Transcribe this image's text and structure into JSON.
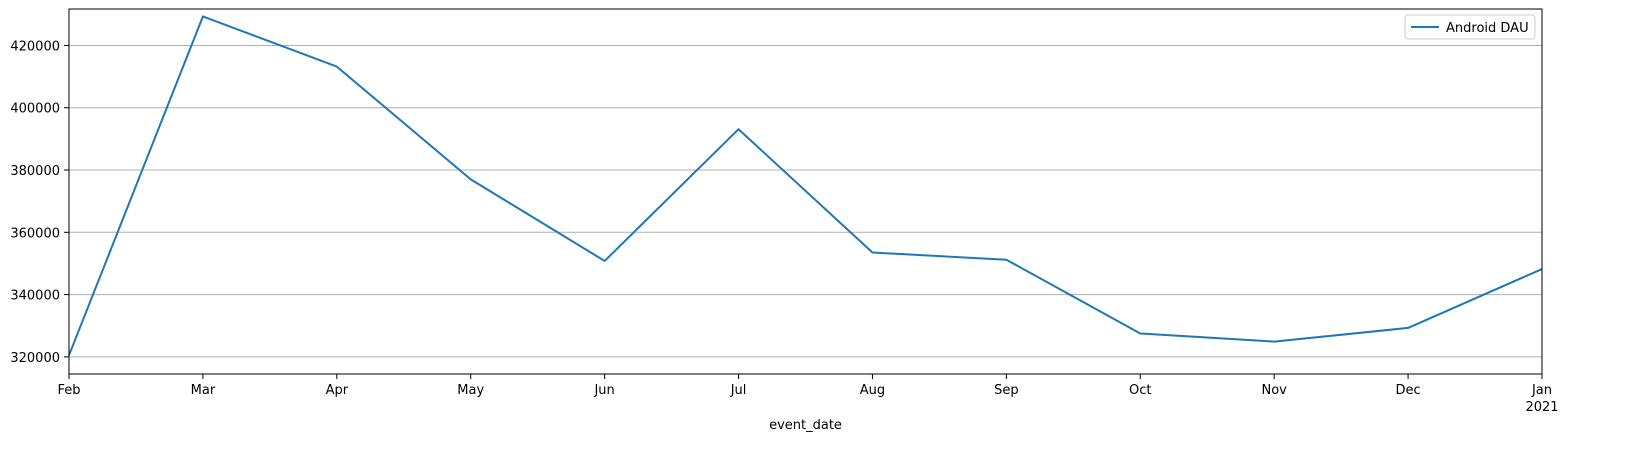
{
  "chart_data": {
    "type": "line",
    "xlabel": "event_date",
    "ylabel": "",
    "x": [
      "Feb",
      "Mar",
      "Apr",
      "May",
      "Jun",
      "Jul",
      "Aug",
      "Sep",
      "Oct",
      "Nov",
      "Dec",
      "Jan"
    ],
    "x_secondary_label": "2021",
    "series": [
      {
        "name": "Android DAU",
        "color": "#1f77b4",
        "values": [
          320500,
          429300,
          413200,
          377000,
          350800,
          393100,
          353500,
          351200,
          327500,
          324900,
          329300,
          348200
        ]
      }
    ],
    "ylim": [
      314500,
      431700
    ],
    "yticks": [
      320000,
      340000,
      360000,
      380000,
      400000,
      420000
    ],
    "ytick_labels": [
      "320000",
      "340000",
      "360000",
      "380000",
      "400000",
      "420000"
    ],
    "grid": {
      "y": true,
      "x": false,
      "color": "#b0b0b0"
    },
    "legend": {
      "placement": "top-right",
      "entries": [
        "Android DAU"
      ]
    }
  }
}
